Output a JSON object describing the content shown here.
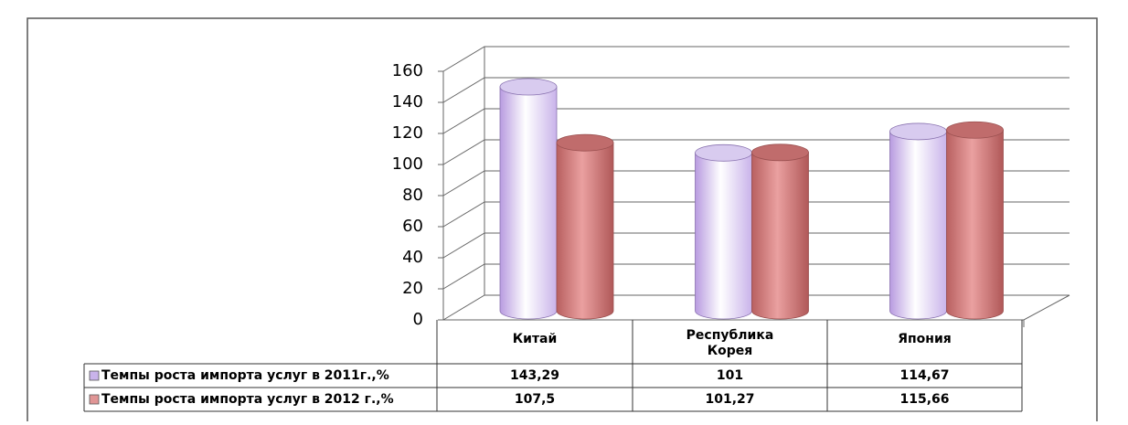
{
  "chart_data": {
    "type": "bar3d",
    "categories": [
      "Китай",
      "Республика Корея",
      "Япония"
    ],
    "series": [
      {
        "name": "Темпы роста импорта услуг в 2011г.,%",
        "color": "#c9b3ea",
        "values": [
          143.29,
          101,
          114.67
        ],
        "value_labels": [
          "143,29",
          "101",
          "114,67"
        ]
      },
      {
        "name": "Темпы роста импорта услуг в 2012 г.,%",
        "color": "#e09595",
        "values": [
          107.5,
          101.27,
          115.66
        ],
        "value_labels": [
          "107,5",
          "101,27",
          "115,66"
        ]
      }
    ],
    "ylim": [
      0,
      160
    ],
    "yticks": [
      0,
      20,
      40,
      60,
      80,
      100,
      120,
      140,
      160
    ],
    "grid": true,
    "legend": "table"
  }
}
